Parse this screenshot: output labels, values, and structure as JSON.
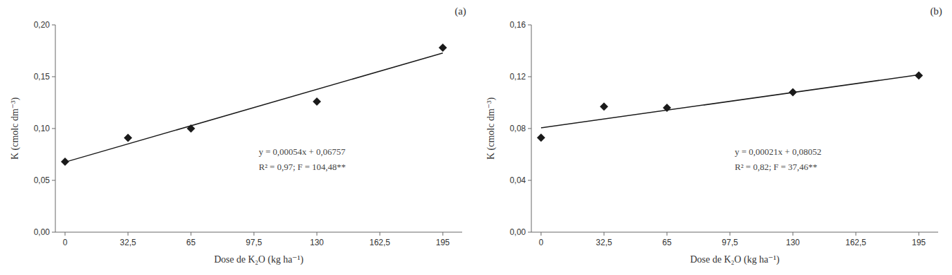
{
  "chart_data": [
    {
      "type": "scatter",
      "title": "(a)",
      "x_label": "Dose de K₂O (kg ha⁻¹)",
      "y_label": "K (cmolc dm⁻³)",
      "annotations": [
        "y = 0,00054x + 0,06757",
        "R² = 0,97; F = 104,48**"
      ],
      "series": [
        {
          "type": "scatter",
          "marker": "diamond",
          "color": "#1a1a1a",
          "x": [
            0,
            32.5,
            65,
            130,
            195
          ],
          "values": [
            0.068,
            0.091,
            0.1,
            0.126,
            0.178
          ]
        },
        {
          "type": "line",
          "line_style": "solid",
          "color": "#1a1a1a",
          "x": [
            0,
            195
          ],
          "values": [
            0.06757,
            0.17287
          ]
        }
      ],
      "xlim": [
        -5,
        205
      ],
      "xticks": [
        0,
        {
          "value": 32.5,
          "label": "32,5"
        },
        65,
        {
          "value": 97.5,
          "label": "97,5"
        },
        130,
        {
          "value": 162.5,
          "label": "162,5"
        },
        195
      ],
      "ylim": [
        0.0,
        0.2
      ],
      "yticks": [
        {
          "value": 0.0,
          "label": "0,00"
        },
        {
          "value": 0.05,
          "label": "0,05"
        },
        {
          "value": 0.1,
          "label": "0,10"
        },
        {
          "value": 0.15,
          "label": "0,15"
        },
        {
          "value": 0.2,
          "label": "0,20"
        }
      ],
      "grid": false
    },
    {
      "type": "scatter",
      "title": "(b)",
      "x_label": "Dose de K₂O (kg ha⁻¹)",
      "y_label": "K (cmolc dm⁻³)",
      "annotations": [
        "y = 0,00021x + 0,08052",
        "R² = 0,82; F = 37,46**"
      ],
      "series": [
        {
          "type": "scatter",
          "marker": "diamond",
          "color": "#1a1a1a",
          "x": [
            0,
            32.5,
            65,
            130,
            195
          ],
          "values": [
            0.073,
            0.097,
            0.096,
            0.108,
            0.121
          ]
        },
        {
          "type": "line",
          "line_style": "solid",
          "color": "#1a1a1a",
          "x": [
            0,
            195
          ],
          "values": [
            0.08052,
            0.12147
          ]
        }
      ],
      "xlim": [
        -5,
        205
      ],
      "xticks": [
        0,
        {
          "value": 32.5,
          "label": "32,5"
        },
        65,
        {
          "value": 97.5,
          "label": "97,5"
        },
        130,
        {
          "value": 162.5,
          "label": "162,5"
        },
        195
      ],
      "ylim": [
        0.0,
        0.16
      ],
      "yticks": [
        {
          "value": 0.0,
          "label": "0,00"
        },
        {
          "value": 0.04,
          "label": "0,04"
        },
        {
          "value": 0.08,
          "label": "0,08"
        },
        {
          "value": 0.12,
          "label": "0,12"
        },
        {
          "value": 0.16,
          "label": "0,16"
        }
      ],
      "grid": false
    }
  ]
}
